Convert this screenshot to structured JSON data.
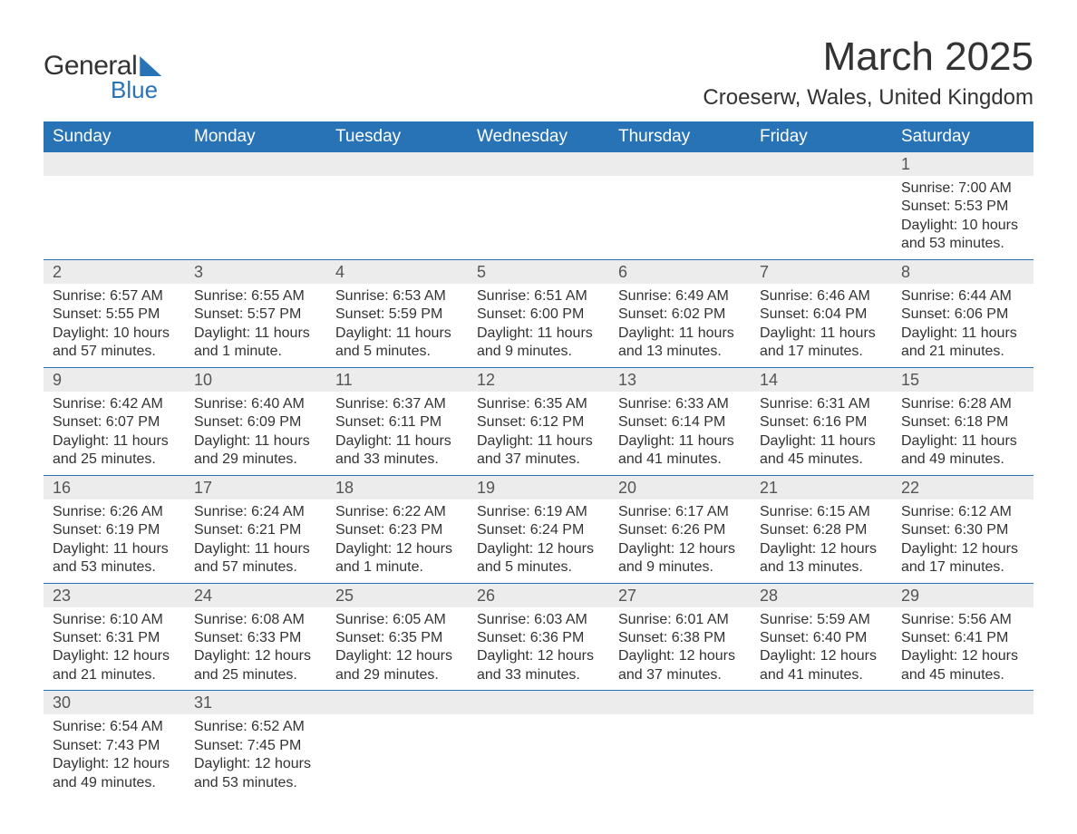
{
  "logo": {
    "text1": "General",
    "text2": "Blue"
  },
  "title": "March 2025",
  "location": "Croeserw, Wales, United Kingdom",
  "colors": {
    "header_bg": "#2873b6",
    "header_text": "#ffffff",
    "daynum_bg": "#ececec",
    "body_text": "#333333",
    "row_border": "#2873b6",
    "page_bg": "#ffffff"
  },
  "typography": {
    "title_fontsize": 44,
    "location_fontsize": 24,
    "weekday_fontsize": 19,
    "daynum_fontsize": 18,
    "body_fontsize": 16,
    "font_family": "Arial"
  },
  "weekdays": [
    "Sunday",
    "Monday",
    "Tuesday",
    "Wednesday",
    "Thursday",
    "Friday",
    "Saturday"
  ],
  "grid": [
    [
      null,
      null,
      null,
      null,
      null,
      null,
      {
        "n": "1",
        "sunrise": "Sunrise: 7:00 AM",
        "sunset": "Sunset: 5:53 PM",
        "daylight1": "Daylight: 10 hours",
        "daylight2": "and 53 minutes."
      }
    ],
    [
      {
        "n": "2",
        "sunrise": "Sunrise: 6:57 AM",
        "sunset": "Sunset: 5:55 PM",
        "daylight1": "Daylight: 10 hours",
        "daylight2": "and 57 minutes."
      },
      {
        "n": "3",
        "sunrise": "Sunrise: 6:55 AM",
        "sunset": "Sunset: 5:57 PM",
        "daylight1": "Daylight: 11 hours",
        "daylight2": "and 1 minute."
      },
      {
        "n": "4",
        "sunrise": "Sunrise: 6:53 AM",
        "sunset": "Sunset: 5:59 PM",
        "daylight1": "Daylight: 11 hours",
        "daylight2": "and 5 minutes."
      },
      {
        "n": "5",
        "sunrise": "Sunrise: 6:51 AM",
        "sunset": "Sunset: 6:00 PM",
        "daylight1": "Daylight: 11 hours",
        "daylight2": "and 9 minutes."
      },
      {
        "n": "6",
        "sunrise": "Sunrise: 6:49 AM",
        "sunset": "Sunset: 6:02 PM",
        "daylight1": "Daylight: 11 hours",
        "daylight2": "and 13 minutes."
      },
      {
        "n": "7",
        "sunrise": "Sunrise: 6:46 AM",
        "sunset": "Sunset: 6:04 PM",
        "daylight1": "Daylight: 11 hours",
        "daylight2": "and 17 minutes."
      },
      {
        "n": "8",
        "sunrise": "Sunrise: 6:44 AM",
        "sunset": "Sunset: 6:06 PM",
        "daylight1": "Daylight: 11 hours",
        "daylight2": "and 21 minutes."
      }
    ],
    [
      {
        "n": "9",
        "sunrise": "Sunrise: 6:42 AM",
        "sunset": "Sunset: 6:07 PM",
        "daylight1": "Daylight: 11 hours",
        "daylight2": "and 25 minutes."
      },
      {
        "n": "10",
        "sunrise": "Sunrise: 6:40 AM",
        "sunset": "Sunset: 6:09 PM",
        "daylight1": "Daylight: 11 hours",
        "daylight2": "and 29 minutes."
      },
      {
        "n": "11",
        "sunrise": "Sunrise: 6:37 AM",
        "sunset": "Sunset: 6:11 PM",
        "daylight1": "Daylight: 11 hours",
        "daylight2": "and 33 minutes."
      },
      {
        "n": "12",
        "sunrise": "Sunrise: 6:35 AM",
        "sunset": "Sunset: 6:12 PM",
        "daylight1": "Daylight: 11 hours",
        "daylight2": "and 37 minutes."
      },
      {
        "n": "13",
        "sunrise": "Sunrise: 6:33 AM",
        "sunset": "Sunset: 6:14 PM",
        "daylight1": "Daylight: 11 hours",
        "daylight2": "and 41 minutes."
      },
      {
        "n": "14",
        "sunrise": "Sunrise: 6:31 AM",
        "sunset": "Sunset: 6:16 PM",
        "daylight1": "Daylight: 11 hours",
        "daylight2": "and 45 minutes."
      },
      {
        "n": "15",
        "sunrise": "Sunrise: 6:28 AM",
        "sunset": "Sunset: 6:18 PM",
        "daylight1": "Daylight: 11 hours",
        "daylight2": "and 49 minutes."
      }
    ],
    [
      {
        "n": "16",
        "sunrise": "Sunrise: 6:26 AM",
        "sunset": "Sunset: 6:19 PM",
        "daylight1": "Daylight: 11 hours",
        "daylight2": "and 53 minutes."
      },
      {
        "n": "17",
        "sunrise": "Sunrise: 6:24 AM",
        "sunset": "Sunset: 6:21 PM",
        "daylight1": "Daylight: 11 hours",
        "daylight2": "and 57 minutes."
      },
      {
        "n": "18",
        "sunrise": "Sunrise: 6:22 AM",
        "sunset": "Sunset: 6:23 PM",
        "daylight1": "Daylight: 12 hours",
        "daylight2": "and 1 minute."
      },
      {
        "n": "19",
        "sunrise": "Sunrise: 6:19 AM",
        "sunset": "Sunset: 6:24 PM",
        "daylight1": "Daylight: 12 hours",
        "daylight2": "and 5 minutes."
      },
      {
        "n": "20",
        "sunrise": "Sunrise: 6:17 AM",
        "sunset": "Sunset: 6:26 PM",
        "daylight1": "Daylight: 12 hours",
        "daylight2": "and 9 minutes."
      },
      {
        "n": "21",
        "sunrise": "Sunrise: 6:15 AM",
        "sunset": "Sunset: 6:28 PM",
        "daylight1": "Daylight: 12 hours",
        "daylight2": "and 13 minutes."
      },
      {
        "n": "22",
        "sunrise": "Sunrise: 6:12 AM",
        "sunset": "Sunset: 6:30 PM",
        "daylight1": "Daylight: 12 hours",
        "daylight2": "and 17 minutes."
      }
    ],
    [
      {
        "n": "23",
        "sunrise": "Sunrise: 6:10 AM",
        "sunset": "Sunset: 6:31 PM",
        "daylight1": "Daylight: 12 hours",
        "daylight2": "and 21 minutes."
      },
      {
        "n": "24",
        "sunrise": "Sunrise: 6:08 AM",
        "sunset": "Sunset: 6:33 PM",
        "daylight1": "Daylight: 12 hours",
        "daylight2": "and 25 minutes."
      },
      {
        "n": "25",
        "sunrise": "Sunrise: 6:05 AM",
        "sunset": "Sunset: 6:35 PM",
        "daylight1": "Daylight: 12 hours",
        "daylight2": "and 29 minutes."
      },
      {
        "n": "26",
        "sunrise": "Sunrise: 6:03 AM",
        "sunset": "Sunset: 6:36 PM",
        "daylight1": "Daylight: 12 hours",
        "daylight2": "and 33 minutes."
      },
      {
        "n": "27",
        "sunrise": "Sunrise: 6:01 AM",
        "sunset": "Sunset: 6:38 PM",
        "daylight1": "Daylight: 12 hours",
        "daylight2": "and 37 minutes."
      },
      {
        "n": "28",
        "sunrise": "Sunrise: 5:59 AM",
        "sunset": "Sunset: 6:40 PM",
        "daylight1": "Daylight: 12 hours",
        "daylight2": "and 41 minutes."
      },
      {
        "n": "29",
        "sunrise": "Sunrise: 5:56 AM",
        "sunset": "Sunset: 6:41 PM",
        "daylight1": "Daylight: 12 hours",
        "daylight2": "and 45 minutes."
      }
    ],
    [
      {
        "n": "30",
        "sunrise": "Sunrise: 6:54 AM",
        "sunset": "Sunset: 7:43 PM",
        "daylight1": "Daylight: 12 hours",
        "daylight2": "and 49 minutes."
      },
      {
        "n": "31",
        "sunrise": "Sunrise: 6:52 AM",
        "sunset": "Sunset: 7:45 PM",
        "daylight1": "Daylight: 12 hours",
        "daylight2": "and 53 minutes."
      },
      null,
      null,
      null,
      null,
      null
    ]
  ]
}
